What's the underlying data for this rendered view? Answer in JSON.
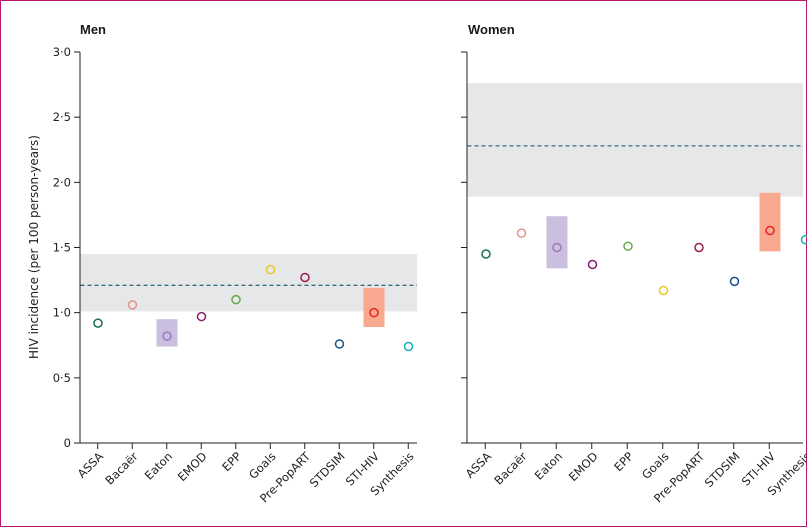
{
  "chart_data": {
    "type": "scatter",
    "ylabel": "HIV incidence (per 100 person-years)",
    "ylim": [
      0,
      3.0
    ],
    "yticks": [
      "0",
      "0·5",
      "1·0",
      "1·5",
      "2·0",
      "2·5",
      "3·0"
    ],
    "categories": [
      "ASSA",
      "Bacaër",
      "Eaton",
      "EMOD",
      "EPP",
      "Goals",
      "Pre-PopART",
      "STDSIM",
      "STI-HIV",
      "Synthesis"
    ],
    "colors": [
      "#1a6e4a",
      "#e8908c",
      "#9a7bc0",
      "#8b1a6e",
      "#6aa84f",
      "#e8c82a",
      "#9c1a4a",
      "#1c4f8c",
      "#e8241c",
      "#1aacb0"
    ],
    "panels": [
      {
        "title": "Men",
        "band": [
          1.01,
          1.45
        ],
        "reference": 1.21,
        "values": [
          0.92,
          1.06,
          0.82,
          0.97,
          1.1,
          1.33,
          1.27,
          0.76,
          1.0,
          0.74
        ],
        "ranges": {
          "Eaton": [
            0.74,
            0.95
          ],
          "STI-HIV": [
            0.89,
            1.19
          ]
        }
      },
      {
        "title": "Women",
        "band": [
          1.89,
          2.76
        ],
        "reference": 2.28,
        "values": [
          1.45,
          1.61,
          1.5,
          1.37,
          1.51,
          1.17,
          1.5,
          1.24,
          1.63,
          1.56
        ],
        "ranges": {
          "Eaton": [
            1.34,
            1.74
          ],
          "STI-HIV": [
            1.47,
            1.92
          ]
        }
      }
    ]
  }
}
